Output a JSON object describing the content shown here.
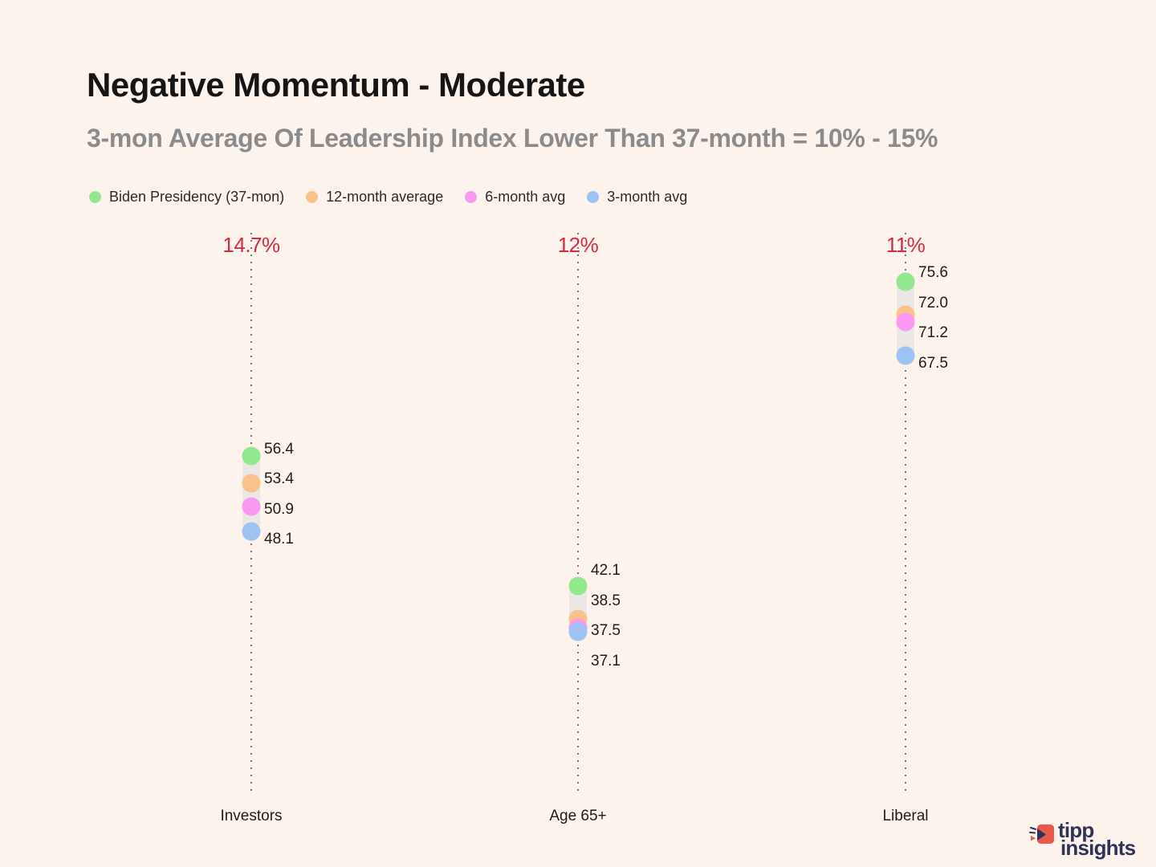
{
  "chart_data": {
    "type": "scatter",
    "title": "Negative Momentum - Moderate",
    "subtitle": "3-mon Average Of Leadership Index Lower Than 37-month = 10% - 15%",
    "categories": [
      "Investors",
      "Age 65+",
      "Liberal"
    ],
    "category_deltas": [
      "14.7%",
      "12%",
      "11%"
    ],
    "series": [
      {
        "name": "Biden Presidency (37-mon)",
        "color": "#93e78d",
        "values": [
          56.4,
          42.1,
          75.6
        ]
      },
      {
        "name": "12-month average",
        "color": "#f9c28a",
        "values": [
          53.4,
          38.5,
          72.0
        ]
      },
      {
        "name": "6-month avg",
        "color": "#f998f1",
        "values": [
          50.9,
          37.5,
          71.2
        ]
      },
      {
        "name": "3-month avg",
        "color": "#9cc3f1",
        "values": [
          48.1,
          37.1,
          67.5
        ]
      }
    ],
    "ylim": [
      19.6,
      81
    ],
    "value_label_decimals": 1,
    "delta_color": "#d22b3e",
    "grid": "dotted-vertical-per-category",
    "legend_position": "top-left",
    "range_band": true
  },
  "branding": {
    "logo_line1": "tipp",
    "logo_line2": "insights",
    "logo_icon": "megaphone-arrow-icon",
    "logo_accent": "#e8584b",
    "logo_text_color": "#2e3357"
  }
}
